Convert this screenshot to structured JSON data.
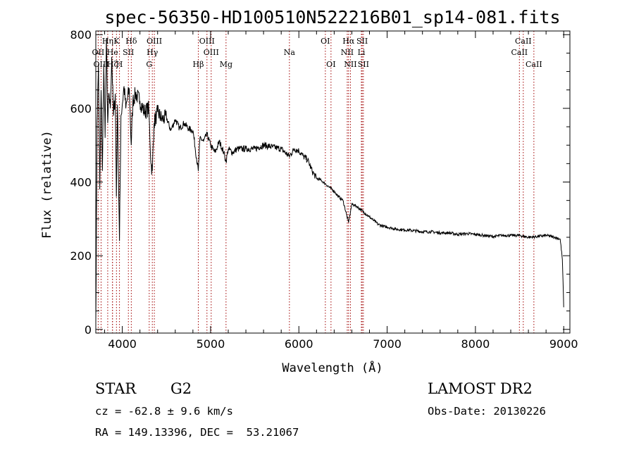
{
  "chart_data": {
    "type": "line",
    "title": "spec-56350-HD100510N522216B01_sp14-081.fits",
    "xlabel": "Wavelength (Å)",
    "ylabel": "Flux (relative)",
    "xlim": [
      3700,
      9070
    ],
    "ylim": [
      -10,
      810
    ],
    "xticks": [
      4000,
      5000,
      6000,
      7000,
      8000,
      9000
    ],
    "yticks": [
      0,
      200,
      400,
      600,
      800
    ],
    "series": [
      {
        "name": "spectrum",
        "anchors": [
          [
            3700,
            20
          ],
          [
            3715,
            560
          ],
          [
            3730,
            720
          ],
          [
            3745,
            380
          ],
          [
            3760,
            650
          ],
          [
            3775,
            430
          ],
          [
            3790,
            720
          ],
          [
            3805,
            520
          ],
          [
            3820,
            790
          ],
          [
            3835,
            560
          ],
          [
            3850,
            640
          ],
          [
            3865,
            600
          ],
          [
            3880,
            740
          ],
          [
            3900,
            580
          ],
          [
            3920,
            640
          ],
          [
            3933,
            360
          ],
          [
            3945,
            610
          ],
          [
            3968,
            240
          ],
          [
            3985,
            580
          ],
          [
            4000,
            610
          ],
          [
            4020,
            660
          ],
          [
            4040,
            600
          ],
          [
            4060,
            630
          ],
          [
            4080,
            650
          ],
          [
            4101,
            500
          ],
          [
            4120,
            620
          ],
          [
            4150,
            640
          ],
          [
            4200,
            620
          ],
          [
            4250,
            590
          ],
          [
            4300,
            600
          ],
          [
            4325,
            450
          ],
          [
            4340,
            430
          ],
          [
            4360,
            560
          ],
          [
            4400,
            590
          ],
          [
            4450,
            570
          ],
          [
            4500,
            575
          ],
          [
            4550,
            540
          ],
          [
            4600,
            570
          ],
          [
            4650,
            545
          ],
          [
            4700,
            560
          ],
          [
            4750,
            545
          ],
          [
            4800,
            540
          ],
          [
            4861,
            430
          ],
          [
            4880,
            520
          ],
          [
            4920,
            510
          ],
          [
            4960,
            530
          ],
          [
            5000,
            500
          ],
          [
            5050,
            480
          ],
          [
            5100,
            510
          ],
          [
            5150,
            480
          ],
          [
            5175,
            455
          ],
          [
            5200,
            490
          ],
          [
            5250,
            480
          ],
          [
            5300,
            490
          ],
          [
            5400,
            490
          ],
          [
            5500,
            490
          ],
          [
            5600,
            500
          ],
          [
            5700,
            495
          ],
          [
            5800,
            490
          ],
          [
            5890,
            470
          ],
          [
            5950,
            490
          ],
          [
            6000,
            485
          ],
          [
            6050,
            470
          ],
          [
            6100,
            460
          ],
          [
            6150,
            430
          ],
          [
            6200,
            410
          ],
          [
            6250,
            405
          ],
          [
            6300,
            395
          ],
          [
            6350,
            385
          ],
          [
            6400,
            375
          ],
          [
            6450,
            360
          ],
          [
            6500,
            350
          ],
          [
            6563,
            290
          ],
          [
            6600,
            340
          ],
          [
            6650,
            335
          ],
          [
            6700,
            325
          ],
          [
            6750,
            315
          ],
          [
            6800,
            305
          ],
          [
            6850,
            295
          ],
          [
            6900,
            285
          ],
          [
            6950,
            280
          ],
          [
            7000,
            278
          ],
          [
            7100,
            272
          ],
          [
            7200,
            270
          ],
          [
            7300,
            268
          ],
          [
            7400,
            265
          ],
          [
            7500,
            265
          ],
          [
            7600,
            262
          ],
          [
            7700,
            262
          ],
          [
            7800,
            258
          ],
          [
            7900,
            260
          ],
          [
            8000,
            258
          ],
          [
            8100,
            255
          ],
          [
            8200,
            252
          ],
          [
            8300,
            255
          ],
          [
            8400,
            255
          ],
          [
            8500,
            255
          ],
          [
            8600,
            250
          ],
          [
            8700,
            252
          ],
          [
            8800,
            255
          ],
          [
            8900,
            250
          ],
          [
            8960,
            245
          ],
          [
            8985,
            190
          ],
          [
            9000,
            60
          ]
        ]
      }
    ],
    "lines": [
      {
        "label": "Hη",
        "wave": 3835,
        "row": 1
      },
      {
        "label": "OII",
        "wave": 3727,
        "row": 2
      },
      {
        "label": "OIII",
        "wave": 3760,
        "row": 3
      },
      {
        "label": "Hζ",
        "wave": 3889,
        "row": 3
      },
      {
        "label": "K",
        "wave": 3934,
        "row": 1
      },
      {
        "label": "He",
        "wave": 3889,
        "row": 2
      },
      {
        "label": "H",
        "wave": 3968,
        "row": 3
      },
      {
        "label": "SII",
        "wave": 4069,
        "row": 2
      },
      {
        "label": "Hδ",
        "wave": 4102,
        "row": 1
      },
      {
        "label": "OIII",
        "wave": 4363,
        "row": 1
      },
      {
        "label": "Hγ",
        "wave": 4340,
        "row": 2
      },
      {
        "label": "G",
        "wave": 4305,
        "row": 3
      },
      {
        "label": "Hβ",
        "wave": 4861,
        "row": 3
      },
      {
        "label": "OIII",
        "wave": 4959,
        "row": 1
      },
      {
        "label": "OIII",
        "wave": 5007,
        "row": 2
      },
      {
        "label": "Mg",
        "wave": 5175,
        "row": 3
      },
      {
        "label": "Na",
        "wave": 5893,
        "row": 2
      },
      {
        "label": "OI",
        "wave": 6300,
        "row": 1
      },
      {
        "label": "OI",
        "wave": 6364,
        "row": 3
      },
      {
        "label": "Hα",
        "wave": 6563,
        "row": 1
      },
      {
        "label": "NII",
        "wave": 6548,
        "row": 2
      },
      {
        "label": "NII",
        "wave": 6584,
        "row": 3
      },
      {
        "label": "SII",
        "wave": 6717,
        "row": 1
      },
      {
        "label": "Li",
        "wave": 6708,
        "row": 2
      },
      {
        "label": "SII",
        "wave": 6731,
        "row": 3
      },
      {
        "label": "CaII",
        "wave": 8542,
        "row": 1
      },
      {
        "label": "CaII",
        "wave": 8498,
        "row": 2
      },
      {
        "label": "CaII",
        "wave": 8662,
        "row": 3
      }
    ]
  },
  "info": {
    "object_class": "STAR",
    "subclass": "G2",
    "survey": "LAMOST DR2",
    "redshift": "cz = -62.8 ± 9.6 km/s",
    "obs_date": "Obs-Date: 20130226",
    "coords": "RA = 149.13396, DEC =  53.21067"
  }
}
